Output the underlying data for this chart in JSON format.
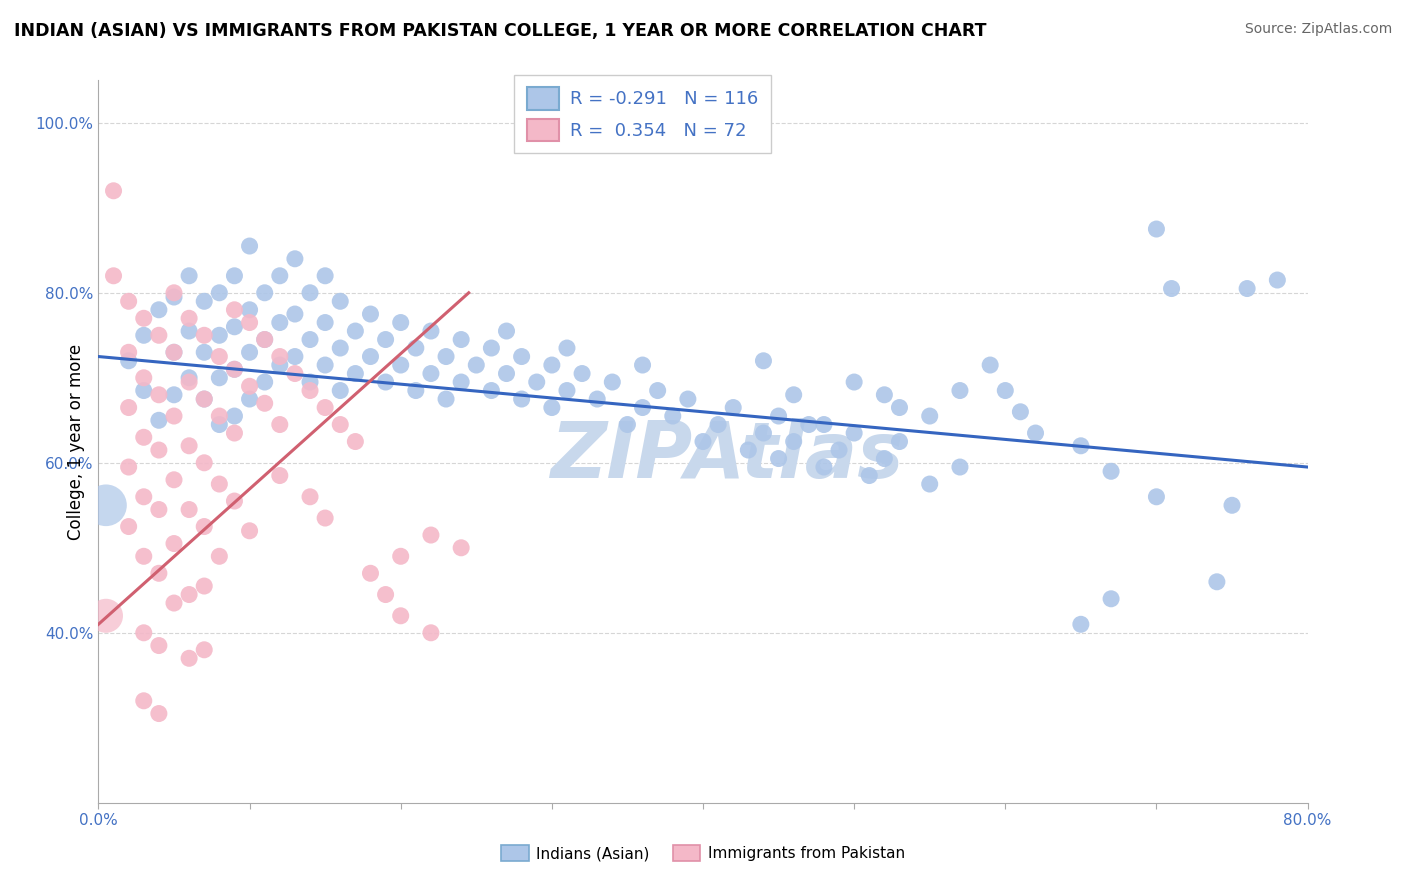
{
  "title": "INDIAN (ASIAN) VS IMMIGRANTS FROM PAKISTAN COLLEGE, 1 YEAR OR MORE CORRELATION CHART",
  "source": "Source: ZipAtlas.com",
  "ylabel": "College, 1 year or more",
  "xmin": 0.0,
  "xmax": 0.8,
  "ymin": 0.2,
  "ymax": 1.05,
  "legend_blue_r": "-0.291",
  "legend_blue_n": "116",
  "legend_pink_r": "0.354",
  "legend_pink_n": "72",
  "blue_scatter_color": "#adc6e8",
  "pink_scatter_color": "#f4b8c8",
  "blue_line_color": "#3565c0",
  "pink_line_color": "#d06070",
  "watermark_color": "#c8d8ec",
  "blue_line_x": [
    0.0,
    0.8
  ],
  "blue_line_y": [
    0.725,
    0.595
  ],
  "pink_line_x": [
    0.0,
    0.245
  ],
  "pink_line_y": [
    0.41,
    0.8
  ],
  "blue_points": [
    [
      0.02,
      0.72
    ],
    [
      0.03,
      0.75
    ],
    [
      0.03,
      0.685
    ],
    [
      0.04,
      0.78
    ],
    [
      0.04,
      0.65
    ],
    [
      0.05,
      0.795
    ],
    [
      0.05,
      0.73
    ],
    [
      0.05,
      0.68
    ],
    [
      0.06,
      0.82
    ],
    [
      0.06,
      0.755
    ],
    [
      0.06,
      0.7
    ],
    [
      0.07,
      0.79
    ],
    [
      0.07,
      0.73
    ],
    [
      0.07,
      0.675
    ],
    [
      0.08,
      0.8
    ],
    [
      0.08,
      0.75
    ],
    [
      0.08,
      0.7
    ],
    [
      0.08,
      0.645
    ],
    [
      0.09,
      0.82
    ],
    [
      0.09,
      0.76
    ],
    [
      0.09,
      0.71
    ],
    [
      0.09,
      0.655
    ],
    [
      0.1,
      0.855
    ],
    [
      0.1,
      0.78
    ],
    [
      0.1,
      0.73
    ],
    [
      0.1,
      0.675
    ],
    [
      0.11,
      0.8
    ],
    [
      0.11,
      0.745
    ],
    [
      0.11,
      0.695
    ],
    [
      0.12,
      0.82
    ],
    [
      0.12,
      0.765
    ],
    [
      0.12,
      0.715
    ],
    [
      0.13,
      0.84
    ],
    [
      0.13,
      0.775
    ],
    [
      0.13,
      0.725
    ],
    [
      0.14,
      0.8
    ],
    [
      0.14,
      0.745
    ],
    [
      0.14,
      0.695
    ],
    [
      0.15,
      0.82
    ],
    [
      0.15,
      0.765
    ],
    [
      0.15,
      0.715
    ],
    [
      0.16,
      0.79
    ],
    [
      0.16,
      0.735
    ],
    [
      0.16,
      0.685
    ],
    [
      0.17,
      0.755
    ],
    [
      0.17,
      0.705
    ],
    [
      0.18,
      0.775
    ],
    [
      0.18,
      0.725
    ],
    [
      0.19,
      0.745
    ],
    [
      0.19,
      0.695
    ],
    [
      0.2,
      0.765
    ],
    [
      0.2,
      0.715
    ],
    [
      0.21,
      0.735
    ],
    [
      0.21,
      0.685
    ],
    [
      0.22,
      0.755
    ],
    [
      0.22,
      0.705
    ],
    [
      0.23,
      0.725
    ],
    [
      0.23,
      0.675
    ],
    [
      0.24,
      0.745
    ],
    [
      0.24,
      0.695
    ],
    [
      0.25,
      0.715
    ],
    [
      0.26,
      0.735
    ],
    [
      0.26,
      0.685
    ],
    [
      0.27,
      0.755
    ],
    [
      0.27,
      0.705
    ],
    [
      0.28,
      0.725
    ],
    [
      0.28,
      0.675
    ],
    [
      0.29,
      0.695
    ],
    [
      0.3,
      0.715
    ],
    [
      0.3,
      0.665
    ],
    [
      0.31,
      0.735
    ],
    [
      0.31,
      0.685
    ],
    [
      0.32,
      0.705
    ],
    [
      0.33,
      0.675
    ],
    [
      0.34,
      0.695
    ],
    [
      0.35,
      0.645
    ],
    [
      0.36,
      0.715
    ],
    [
      0.36,
      0.665
    ],
    [
      0.37,
      0.685
    ],
    [
      0.38,
      0.655
    ],
    [
      0.39,
      0.675
    ],
    [
      0.4,
      0.625
    ],
    [
      0.41,
      0.645
    ],
    [
      0.42,
      0.665
    ],
    [
      0.43,
      0.615
    ],
    [
      0.44,
      0.635
    ],
    [
      0.45,
      0.655
    ],
    [
      0.45,
      0.605
    ],
    [
      0.46,
      0.625
    ],
    [
      0.47,
      0.645
    ],
    [
      0.48,
      0.595
    ],
    [
      0.49,
      0.615
    ],
    [
      0.5,
      0.635
    ],
    [
      0.51,
      0.585
    ],
    [
      0.52,
      0.605
    ],
    [
      0.53,
      0.625
    ],
    [
      0.55,
      0.575
    ],
    [
      0.57,
      0.595
    ],
    [
      0.52,
      0.68
    ],
    [
      0.55,
      0.655
    ],
    [
      0.57,
      0.685
    ],
    [
      0.59,
      0.715
    ],
    [
      0.6,
      0.685
    ],
    [
      0.61,
      0.66
    ],
    [
      0.62,
      0.635
    ],
    [
      0.44,
      0.72
    ],
    [
      0.46,
      0.68
    ],
    [
      0.48,
      0.645
    ],
    [
      0.5,
      0.695
    ],
    [
      0.53,
      0.665
    ],
    [
      0.7,
      0.875
    ],
    [
      0.71,
      0.805
    ],
    [
      0.74,
      0.46
    ],
    [
      0.75,
      0.55
    ],
    [
      0.76,
      0.805
    ],
    [
      0.78,
      0.815
    ],
    [
      0.65,
      0.62
    ],
    [
      0.67,
      0.59
    ],
    [
      0.7,
      0.56
    ],
    [
      0.65,
      0.41
    ],
    [
      0.67,
      0.44
    ]
  ],
  "pink_points": [
    [
      0.01,
      0.92
    ],
    [
      0.01,
      0.82
    ],
    [
      0.02,
      0.79
    ],
    [
      0.02,
      0.73
    ],
    [
      0.02,
      0.665
    ],
    [
      0.02,
      0.595
    ],
    [
      0.02,
      0.525
    ],
    [
      0.03,
      0.77
    ],
    [
      0.03,
      0.7
    ],
    [
      0.03,
      0.63
    ],
    [
      0.03,
      0.56
    ],
    [
      0.03,
      0.49
    ],
    [
      0.03,
      0.4
    ],
    [
      0.03,
      0.32
    ],
    [
      0.04,
      0.75
    ],
    [
      0.04,
      0.68
    ],
    [
      0.04,
      0.615
    ],
    [
      0.04,
      0.545
    ],
    [
      0.04,
      0.47
    ],
    [
      0.04,
      0.385
    ],
    [
      0.04,
      0.305
    ],
    [
      0.05,
      0.8
    ],
    [
      0.05,
      0.73
    ],
    [
      0.05,
      0.655
    ],
    [
      0.05,
      0.58
    ],
    [
      0.05,
      0.505
    ],
    [
      0.05,
      0.435
    ],
    [
      0.06,
      0.77
    ],
    [
      0.06,
      0.695
    ],
    [
      0.06,
      0.62
    ],
    [
      0.06,
      0.545
    ],
    [
      0.06,
      0.445
    ],
    [
      0.07,
      0.75
    ],
    [
      0.07,
      0.675
    ],
    [
      0.07,
      0.6
    ],
    [
      0.07,
      0.525
    ],
    [
      0.07,
      0.38
    ],
    [
      0.08,
      0.725
    ],
    [
      0.08,
      0.655
    ],
    [
      0.08,
      0.575
    ],
    [
      0.09,
      0.78
    ],
    [
      0.09,
      0.71
    ],
    [
      0.09,
      0.635
    ],
    [
      0.1,
      0.765
    ],
    [
      0.1,
      0.69
    ],
    [
      0.11,
      0.745
    ],
    [
      0.11,
      0.67
    ],
    [
      0.12,
      0.725
    ],
    [
      0.12,
      0.645
    ],
    [
      0.13,
      0.705
    ],
    [
      0.14,
      0.685
    ],
    [
      0.15,
      0.665
    ],
    [
      0.16,
      0.645
    ],
    [
      0.17,
      0.625
    ],
    [
      0.18,
      0.47
    ],
    [
      0.19,
      0.445
    ],
    [
      0.2,
      0.42
    ],
    [
      0.12,
      0.585
    ],
    [
      0.14,
      0.56
    ],
    [
      0.15,
      0.535
    ],
    [
      0.09,
      0.555
    ],
    [
      0.1,
      0.52
    ],
    [
      0.22,
      0.4
    ],
    [
      0.07,
      0.455
    ],
    [
      0.06,
      0.37
    ],
    [
      0.08,
      0.49
    ],
    [
      0.24,
      0.5
    ],
    [
      0.22,
      0.515
    ],
    [
      0.2,
      0.49
    ]
  ]
}
